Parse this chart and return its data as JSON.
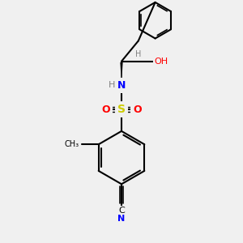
{
  "background_color": "#f0f0f0",
  "bond_color": "#000000",
  "atom_colors": {
    "N": "#0000ff",
    "O": "#ff0000",
    "S": "#cccc00",
    "C": "#000000",
    "H": "#808080"
  },
  "figsize": [
    3.0,
    3.0
  ],
  "dpi": 100
}
